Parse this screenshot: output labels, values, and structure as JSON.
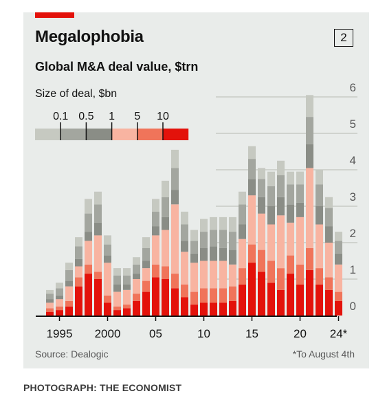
{
  "header": {
    "title": "Megalophobia",
    "chart_number": "2",
    "subtitle": "Global M&A deal value, $trn"
  },
  "footer": {
    "source": "Source: Dealogic",
    "footnote": "*To August 4th",
    "photo_credit": "PHOTOGRAPH: THE ECONOMIST"
  },
  "chart_data": {
    "type": "bar",
    "stacked": true,
    "title": "Megalophobia",
    "subtitle": "Global M&A deal value, $trn",
    "legend_title": "Size of deal, $bn",
    "legend_placement": "top-left",
    "legend_thresholds": [
      "0.1",
      "0.5",
      "1",
      "5",
      "10"
    ],
    "x": [
      1994,
      1995,
      1996,
      1997,
      1998,
      1999,
      2000,
      2001,
      2002,
      2003,
      2004,
      2005,
      2006,
      2007,
      2008,
      2009,
      2010,
      2011,
      2012,
      2013,
      2014,
      2015,
      2016,
      2017,
      2018,
      2019,
      2020,
      2021,
      2022,
      2023,
      2024
    ],
    "x_tick_labels": [
      {
        "x": 1995,
        "label": "1995"
      },
      {
        "x": 2000,
        "label": "2000"
      },
      {
        "x": 2005,
        "label": "05"
      },
      {
        "x": 2010,
        "label": "10"
      },
      {
        "x": 2015,
        "label": "15"
      },
      {
        "x": 2020,
        "label": "20"
      },
      {
        "x": 2024,
        "label": "24*"
      }
    ],
    "ylim": [
      0,
      6
    ],
    "y_ticks": [
      0,
      1,
      2,
      3,
      4,
      5,
      6
    ],
    "y_axis_side": "right",
    "grid": true,
    "series": [
      {
        "name": "10+",
        "color": "#e3120b",
        "values": [
          0.1,
          0.15,
          0.25,
          0.8,
          1.15,
          1.0,
          0.35,
          0.15,
          0.2,
          0.4,
          0.65,
          1.05,
          1.0,
          0.75,
          0.5,
          0.3,
          0.35,
          0.35,
          0.35,
          0.4,
          0.85,
          1.45,
          1.2,
          0.9,
          0.7,
          1.15,
          0.85,
          1.25,
          0.85,
          0.7,
          0.4
        ]
      },
      {
        "name": "5-10",
        "color": "#f0745a",
        "values": [
          0.1,
          0.1,
          0.15,
          0.25,
          0.25,
          0.2,
          0.2,
          0.1,
          0.1,
          0.2,
          0.3,
          0.35,
          0.35,
          0.4,
          0.35,
          0.35,
          0.4,
          0.4,
          0.4,
          0.4,
          0.45,
          0.5,
          0.6,
          0.6,
          0.6,
          0.5,
          0.55,
          0.6,
          0.45,
          0.35,
          0.25
        ]
      },
      {
        "name": "1-5",
        "color": "#f8b4a1",
        "values": [
          0.15,
          0.2,
          0.4,
          0.3,
          0.65,
          1.0,
          0.9,
          0.4,
          0.4,
          0.4,
          0.35,
          0.8,
          1.0,
          1.9,
          0.9,
          0.8,
          0.75,
          0.75,
          0.75,
          0.6,
          0.8,
          1.35,
          1.0,
          1.0,
          1.45,
          0.9,
          1.3,
          2.2,
          1.2,
          0.95,
          0.75
        ]
      },
      {
        "name": "0.5-1",
        "color": "#8a8d86",
        "values": [
          0.1,
          0.1,
          0.15,
          0.2,
          0.25,
          0.35,
          0.2,
          0.2,
          0.15,
          0.15,
          0.2,
          0.25,
          0.35,
          0.4,
          0.3,
          0.25,
          0.35,
          0.4,
          0.35,
          0.4,
          0.4,
          0.45,
          0.45,
          0.5,
          0.5,
          0.5,
          0.4,
          0.65,
          0.5,
          0.45,
          0.3
        ]
      },
      {
        "name": "0.1-0.5",
        "color": "#a3a69f",
        "values": [
          0.15,
          0.2,
          0.3,
          0.35,
          0.5,
          0.5,
          0.3,
          0.25,
          0.25,
          0.25,
          0.35,
          0.4,
          0.55,
          0.6,
          0.45,
          0.35,
          0.45,
          0.45,
          0.5,
          0.5,
          0.55,
          0.55,
          0.5,
          0.55,
          0.6,
          0.55,
          0.5,
          0.75,
          0.6,
          0.5,
          0.35
        ]
      },
      {
        "name": "<0.1",
        "color": "#c6c9c1",
        "values": [
          0.1,
          0.15,
          0.2,
          0.25,
          0.4,
          0.35,
          0.25,
          0.2,
          0.2,
          0.2,
          0.3,
          0.35,
          0.45,
          0.5,
          0.35,
          0.3,
          0.35,
          0.35,
          0.35,
          0.4,
          0.35,
          0.35,
          0.3,
          0.4,
          0.4,
          0.35,
          0.35,
          0.6,
          0.4,
          0.3,
          0.25
        ]
      }
    ]
  }
}
